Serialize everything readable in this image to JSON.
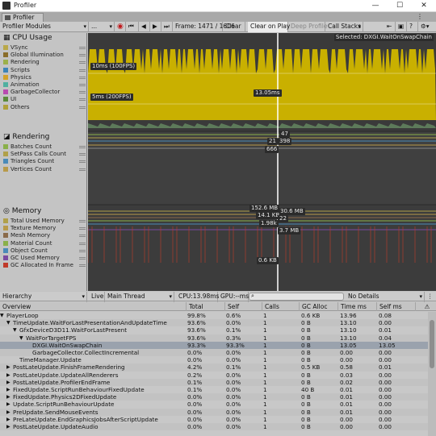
{
  "window": {
    "title": "Profiler",
    "tab": "Profiler",
    "controls": [
      "—",
      "☐",
      "✕"
    ]
  },
  "toolbar": {
    "modules": "Profiler Modules",
    "target": "...",
    "frame": "Frame: 1471 / 1606",
    "clear": "Clear",
    "clear_on_play": "Clear on Play",
    "deep_profile": "Deep Profile",
    "call_stacks": "Call Stacks"
  },
  "cpu": {
    "title": "CPU Usage",
    "items": [
      {
        "label": "VSync",
        "color": "#b9a84a"
      },
      {
        "label": "Global Illumination",
        "color": "#8a6d2a"
      },
      {
        "label": "Rendering",
        "color": "#9bb04a"
      },
      {
        "label": "Scripts",
        "color": "#3d84b8"
      },
      {
        "label": "Physics",
        "color": "#d4a22a"
      },
      {
        "label": "Animation",
        "color": "#4fb0a0"
      },
      {
        "label": "GarbageCollector",
        "color": "#b84ab0"
      },
      {
        "label": "UI",
        "color": "#5a8a3a"
      },
      {
        "label": "Others",
        "color": "#b0a03a"
      }
    ],
    "selected_label": "Selected: DXGI.WaitOnSwapChain",
    "label_100": "10ms (100FPS)",
    "label_200": "5ms (200FPS)",
    "value_label": "13.05ms"
  },
  "rendering": {
    "title": "Rendering",
    "items": [
      {
        "label": "Batches Count",
        "color": "#8ab04a"
      },
      {
        "label": "SetPass Calls Count",
        "color": "#b0a04a"
      },
      {
        "label": "Triangles Count",
        "color": "#4a8ab8"
      },
      {
        "label": "Vertices Count",
        "color": "#b89a4a"
      }
    ],
    "values": [
      "47",
      "21",
      "398",
      "666"
    ]
  },
  "memory": {
    "title": "Memory",
    "items": [
      {
        "label": "Total Used Memory",
        "color": "#b0a04a"
      },
      {
        "label": "Texture Memory",
        "color": "#b89a4a"
      },
      {
        "label": "Mesh Memory",
        "color": "#8a6a4a"
      },
      {
        "label": "Material Count",
        "color": "#8ab04a"
      },
      {
        "label": "Object Count",
        "color": "#4a8ab8"
      },
      {
        "label": "GC Used Memory",
        "color": "#7a4aa0"
      },
      {
        "label": "GC Allocated In Frame",
        "color": "#c03a2a"
      }
    ],
    "values": [
      "152.6 MB",
      "30.6 MB",
      "14.1 KB",
      "22",
      "1.98k",
      "3.7 MB",
      "0.6 KB"
    ]
  },
  "hierarchy": {
    "view": "Hierarchy",
    "live": "Live",
    "thread": "Main Thread",
    "cpu": "CPU:13.98ms",
    "gpu": "GPU:--ms",
    "search_placeholder": "",
    "details": "No Details"
  },
  "columns": [
    "Overview",
    "Total",
    "Self",
    "Calls",
    "GC Alloc",
    "Time ms",
    "Self ms"
  ],
  "table": [
    {
      "name": "PlayerLoop",
      "indent": 0,
      "exp": "▼",
      "total": "99.8%",
      "self": "0.6%",
      "calls": "1",
      "gc": "0.6 KB",
      "time": "13.96",
      "selfms": "0.08"
    },
    {
      "name": "TimeUpdate.WaitForLastPresentationAndUpdateTime",
      "indent": 1,
      "exp": "▼",
      "total": "93.6%",
      "self": "0.0%",
      "calls": "1",
      "gc": "0 B",
      "time": "13.10",
      "selfms": "0.00"
    },
    {
      "name": "GfxDeviceD3D11.WaitForLastPresent",
      "indent": 2,
      "exp": "▼",
      "total": "93.6%",
      "self": "0.1%",
      "calls": "1",
      "gc": "0 B",
      "time": "13.10",
      "selfms": "0.01"
    },
    {
      "name": "WaitForTargetFPS",
      "indent": 3,
      "exp": "▼",
      "total": "93.6%",
      "self": "0.3%",
      "calls": "1",
      "gc": "0 B",
      "time": "13.10",
      "selfms": "0.04"
    },
    {
      "name": "DXGI.WaitOnSwapChain",
      "indent": 4,
      "exp": "",
      "total": "93.3%",
      "self": "93.3%",
      "calls": "1",
      "gc": "0 B",
      "time": "13.05",
      "selfms": "13.05"
    },
    {
      "name": "GarbageCollector.CollectIncremental",
      "indent": 4,
      "exp": "",
      "total": "0.0%",
      "self": "0.0%",
      "calls": "1",
      "gc": "0 B",
      "time": "0.00",
      "selfms": "0.00"
    },
    {
      "name": "TimeManager.Update",
      "indent": 2,
      "exp": "",
      "total": "0.0%",
      "self": "0.0%",
      "calls": "1",
      "gc": "0 B",
      "time": "0.00",
      "selfms": "0.00"
    },
    {
      "name": "PostLateUpdate.FinishFrameRendering",
      "indent": 1,
      "exp": "▶",
      "total": "4.2%",
      "self": "0.1%",
      "calls": "1",
      "gc": "0.5 KB",
      "time": "0.58",
      "selfms": "0.01"
    },
    {
      "name": "PostLateUpdate.UpdateAllRenderers",
      "indent": 1,
      "exp": "▶",
      "total": "0.2%",
      "self": "0.0%",
      "calls": "1",
      "gc": "0 B",
      "time": "0.03",
      "selfms": "0.00"
    },
    {
      "name": "PostLateUpdate.ProfilerEndFrame",
      "indent": 1,
      "exp": "▶",
      "total": "0.1%",
      "self": "0.0%",
      "calls": "1",
      "gc": "0 B",
      "time": "0.02",
      "selfms": "0.00"
    },
    {
      "name": "FixedUpdate.ScriptRunBehaviourFixedUpdate",
      "indent": 1,
      "exp": "▶",
      "total": "0.1%",
      "self": "0.0%",
      "calls": "1",
      "gc": "40 B",
      "time": "0.01",
      "selfms": "0.00"
    },
    {
      "name": "FixedUpdate.Physics2DFixedUpdate",
      "indent": 1,
      "exp": "▶",
      "total": "0.0%",
      "self": "0.0%",
      "calls": "1",
      "gc": "0 B",
      "time": "0.01",
      "selfms": "0.00"
    },
    {
      "name": "Update.ScriptRunBehaviourUpdate",
      "indent": 1,
      "exp": "▶",
      "total": "0.0%",
      "self": "0.0%",
      "calls": "1",
      "gc": "0 B",
      "time": "0.01",
      "selfms": "0.00"
    },
    {
      "name": "PreUpdate.SendMouseEvents",
      "indent": 1,
      "exp": "▶",
      "total": "0.0%",
      "self": "0.0%",
      "calls": "1",
      "gc": "0 B",
      "time": "0.01",
      "selfms": "0.00"
    },
    {
      "name": "PreLateUpdate.EndGraphicsJobsAfterScriptUpdate",
      "indent": 1,
      "exp": "▶",
      "total": "0.0%",
      "self": "0.0%",
      "calls": "1",
      "gc": "0 B",
      "time": "0.00",
      "selfms": "0.00"
    },
    {
      "name": "PostLateUpdate.UpdateAudio",
      "indent": 1,
      "exp": "▶",
      "total": "0.0%",
      "self": "0.0%",
      "calls": "1",
      "gc": "0 B",
      "time": "0.00",
      "selfms": "0.00"
    }
  ]
}
